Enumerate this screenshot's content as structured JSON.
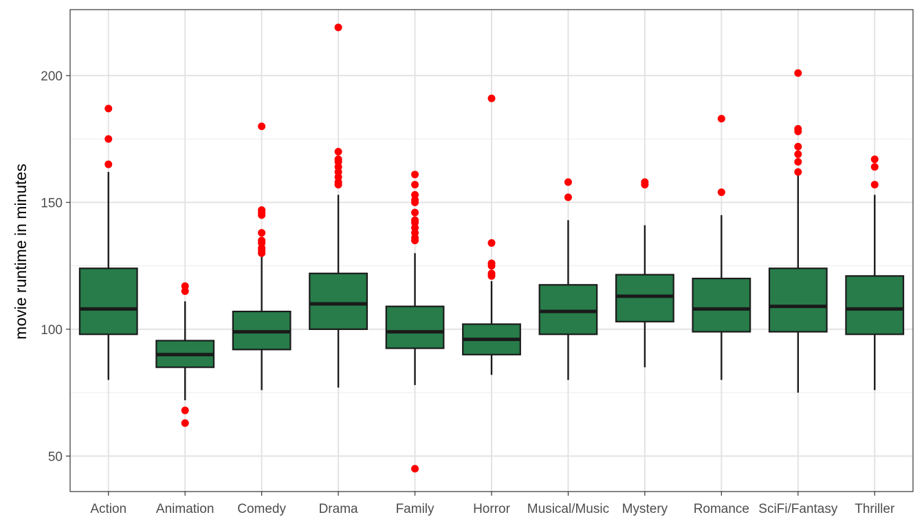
{
  "chart_data": {
    "type": "boxplot",
    "title": "",
    "xlabel": "",
    "ylabel": "movie runtime in minutes",
    "ylim": [
      36,
      226
    ],
    "yticks": [
      50,
      100,
      150,
      200
    ],
    "grid": true,
    "box_color": "#277C4A",
    "outlier_color": "#FF0000",
    "categories": [
      "Action",
      "Animation",
      "Comedy",
      "Drama",
      "Family",
      "Horror",
      "Musical/Music",
      "Mystery",
      "Romance",
      "SciFi/Fantasy",
      "Thriller"
    ],
    "boxes": [
      {
        "category": "Action",
        "lower_whisker": 80,
        "q1": 98,
        "median": 108,
        "q3": 124,
        "upper_whisker": 162,
        "outliers": [
          165,
          175,
          187
        ]
      },
      {
        "category": "Animation",
        "lower_whisker": 72,
        "q1": 85,
        "median": 90,
        "q3": 95.5,
        "upper_whisker": 111,
        "outliers": [
          63,
          68,
          115,
          117
        ]
      },
      {
        "category": "Comedy",
        "lower_whisker": 76,
        "q1": 92,
        "median": 99,
        "q3": 107,
        "upper_whisker": 129,
        "outliers": [
          130,
          131,
          132,
          134,
          135,
          138,
          145,
          146,
          147,
          180
        ]
      },
      {
        "category": "Drama",
        "lower_whisker": 77,
        "q1": 100,
        "median": 110,
        "q3": 122,
        "upper_whisker": 153,
        "outliers": [
          157,
          158,
          160,
          162,
          164,
          166,
          167,
          170,
          219
        ]
      },
      {
        "category": "Family",
        "lower_whisker": 78,
        "q1": 92.5,
        "median": 99,
        "q3": 109,
        "upper_whisker": 130,
        "outliers": [
          45,
          135,
          136,
          138,
          140,
          142,
          143,
          146,
          150,
          151,
          153,
          157,
          161
        ]
      },
      {
        "category": "Horror",
        "lower_whisker": 82,
        "q1": 90,
        "median": 96,
        "q3": 102,
        "upper_whisker": 119,
        "outliers": [
          121,
          122,
          125,
          126,
          134,
          191
        ]
      },
      {
        "category": "Musical/Music",
        "lower_whisker": 80,
        "q1": 98,
        "median": 107,
        "q3": 117.5,
        "upper_whisker": 143,
        "outliers": [
          152,
          158
        ]
      },
      {
        "category": "Mystery",
        "lower_whisker": 85,
        "q1": 103,
        "median": 113,
        "q3": 121.5,
        "upper_whisker": 141,
        "outliers": [
          157,
          158
        ]
      },
      {
        "category": "Romance",
        "lower_whisker": 80,
        "q1": 99,
        "median": 108,
        "q3": 120,
        "upper_whisker": 145,
        "outliers": [
          154,
          183
        ]
      },
      {
        "category": "SciFi/Fantasy",
        "lower_whisker": 75,
        "q1": 99,
        "median": 109,
        "q3": 124,
        "upper_whisker": 161,
        "outliers": [
          162,
          166,
          169,
          172,
          178,
          179,
          201
        ]
      },
      {
        "category": "Thriller",
        "lower_whisker": 76,
        "q1": 98,
        "median": 108,
        "q3": 121,
        "upper_whisker": 153,
        "outliers": [
          157,
          164,
          167
        ]
      }
    ]
  }
}
